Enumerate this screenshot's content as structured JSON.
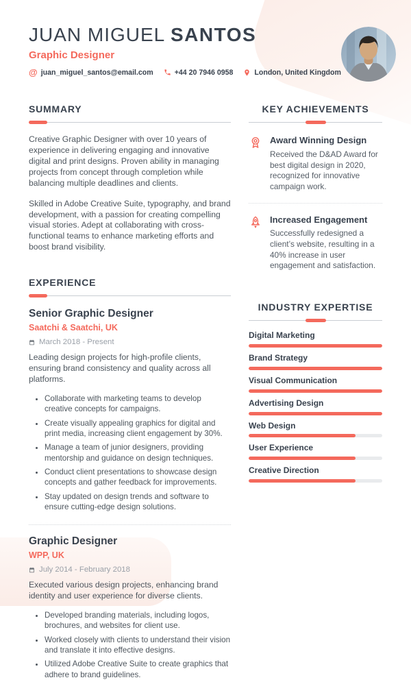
{
  "colors": {
    "accent": "#F4695C",
    "dark_text": "#39424E",
    "body_text": "#4E565E",
    "muted_text": "#9AA0A8",
    "bar_track": "#E9EBED",
    "decorative_blob": "#FBECE7"
  },
  "header": {
    "first_name": "JUAN MIGUEL",
    "last_name": "SANTOS",
    "title": "Graphic Designer",
    "contacts": [
      {
        "icon": "at-icon",
        "text": "juan_miguel_santos@email.com"
      },
      {
        "icon": "phone-icon",
        "text": "+44 20 7946 0958"
      },
      {
        "icon": "location-pin-icon",
        "text": "London, United Kingdom"
      }
    ],
    "avatar": "profile-photo"
  },
  "summary": {
    "heading": "SUMMARY",
    "paragraphs": [
      "Creative Graphic Designer with over 10 years of experience in delivering engaging and innovative digital and print designs. Proven ability in managing projects from concept through completion while balancing multiple deadlines and clients.",
      "Skilled in Adobe Creative Suite, typography, and brand development, with a passion for creating compelling visual stories. Adept at collaborating with cross-functional teams to enhance marketing efforts and boost brand visibility."
    ]
  },
  "experience": {
    "heading": "EXPERIENCE",
    "jobs": [
      {
        "title": "Senior Graphic Designer",
        "company": "Saatchi & Saatchi, UK",
        "dates": "March 2018 - Present",
        "date_icon": "calendar-icon",
        "lead": "Leading design projects for high-profile clients, ensuring brand consistency and quality across all platforms.",
        "bullets": [
          "Collaborate with marketing teams to develop creative concepts for campaigns.",
          "Create visually appealing graphics for digital and print media, increasing client engagement by 30%.",
          "Manage a team of junior designers, providing mentorship and guidance on design techniques.",
          "Conduct client presentations to showcase design concepts and gather feedback for improvements.",
          "Stay updated on design trends and software to ensure cutting-edge design solutions."
        ]
      },
      {
        "title": "Graphic Designer",
        "company": "WPP, UK",
        "dates": "July 2014 - February 2018",
        "date_icon": "calendar-icon",
        "lead": "Executed various design projects, enhancing brand identity and user experience for diverse clients.",
        "bullets": [
          "Developed branding materials, including logos, brochures, and websites for client use.",
          "Worked closely with clients to understand their vision and translate it into effective designs.",
          "Utilized Adobe Creative Suite to create graphics that adhere to brand guidelines."
        ]
      }
    ]
  },
  "achievements": {
    "heading": "KEY ACHIEVEMENTS",
    "items": [
      {
        "icon": "medal-icon",
        "title": "Award Winning Design",
        "description": "Received the D&AD Award for best digital design in 2020, recognized for innovative campaign work."
      },
      {
        "icon": "rocket-icon",
        "title": "Increased Engagement",
        "description": "Successfully redesigned a client’s website, resulting in a 40% increase in user engagement and satisfaction."
      }
    ]
  },
  "expertise": {
    "heading": "INDUSTRY EXPERTISE",
    "skills": [
      {
        "name": "Digital Marketing",
        "level": 100
      },
      {
        "name": "Brand Strategy",
        "level": 100
      },
      {
        "name": "Visual Communication",
        "level": 100
      },
      {
        "name": "Advertising Design",
        "level": 100
      },
      {
        "name": "Web Design",
        "level": 80
      },
      {
        "name": "User Experience",
        "level": 80
      },
      {
        "name": "Creative Direction",
        "level": 80
      }
    ]
  }
}
